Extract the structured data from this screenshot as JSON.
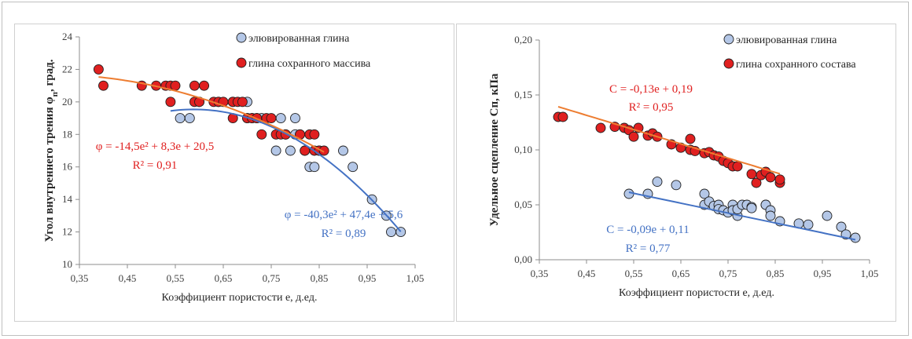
{
  "chart_data": [
    {
      "type": "scatter",
      "xlabel": "Коэффициент пористости е, д.ед.",
      "ylabel": "Угол внутреннего трения φ",
      "ylabel_sub": "п",
      "ylabel_tail": ", град.",
      "xlim": [
        0.35,
        1.05
      ],
      "ylim": [
        10,
        24
      ],
      "xticks": [
        0.35,
        0.45,
        0.55,
        0.65,
        0.75,
        0.85,
        0.95,
        1.05
      ],
      "yticks": [
        10,
        12,
        14,
        16,
        18,
        20,
        22,
        24
      ],
      "x_decimals": 2,
      "y_decimals": 0,
      "legend": [
        {
          "label": "элювированная глина",
          "color": "#b4c7e7"
        },
        {
          "label": "глина сохранного массива",
          "color": "#e02020"
        }
      ],
      "series": [
        {
          "name": "элювированная глина",
          "fill": "#b4c7e7",
          "trend_color": "#4472c4",
          "trend": {
            "kind": "poly2",
            "a": -40.3,
            "b": 47.4,
            "c": 5.6,
            "x0": 0.54,
            "x1": 1.02
          },
          "points": [
            [
              0.56,
              19
            ],
            [
              0.58,
              19
            ],
            [
              0.6,
              20
            ],
            [
              0.64,
              20
            ],
            [
              0.67,
              20
            ],
            [
              0.7,
              20
            ],
            [
              0.7,
              19
            ],
            [
              0.71,
              19
            ],
            [
              0.72,
              19
            ],
            [
              0.73,
              19
            ],
            [
              0.76,
              17
            ],
            [
              0.77,
              19
            ],
            [
              0.78,
              18
            ],
            [
              0.79,
              17
            ],
            [
              0.8,
              19
            ],
            [
              0.8,
              18
            ],
            [
              0.81,
              18
            ],
            [
              0.82,
              17
            ],
            [
              0.83,
              16
            ],
            [
              0.84,
              16
            ],
            [
              0.85,
              17
            ],
            [
              0.9,
              17
            ],
            [
              0.92,
              16
            ],
            [
              0.96,
              14
            ],
            [
              0.99,
              13
            ],
            [
              1.0,
              12
            ],
            [
              1.02,
              12
            ]
          ]
        },
        {
          "name": "глина сохранного массива",
          "fill": "#e02020",
          "trend_color": "#ed7d31",
          "trend": {
            "kind": "poly2",
            "a": -14.5,
            "b": 8.3,
            "c": 20.5,
            "x0": 0.39,
            "x1": 0.86
          },
          "points": [
            [
              0.39,
              22
            ],
            [
              0.4,
              21
            ],
            [
              0.48,
              21
            ],
            [
              0.51,
              21
            ],
            [
              0.53,
              21
            ],
            [
              0.54,
              21
            ],
            [
              0.55,
              21
            ],
            [
              0.54,
              20
            ],
            [
              0.59,
              20
            ],
            [
              0.59,
              21
            ],
            [
              0.61,
              21
            ],
            [
              0.6,
              20
            ],
            [
              0.63,
              20
            ],
            [
              0.64,
              20
            ],
            [
              0.65,
              20
            ],
            [
              0.67,
              20
            ],
            [
              0.68,
              20
            ],
            [
              0.67,
              19
            ],
            [
              0.69,
              20
            ],
            [
              0.7,
              19
            ],
            [
              0.71,
              19
            ],
            [
              0.72,
              19
            ],
            [
              0.73,
              18
            ],
            [
              0.74,
              19
            ],
            [
              0.75,
              19
            ],
            [
              0.76,
              18
            ],
            [
              0.77,
              18
            ],
            [
              0.78,
              18
            ],
            [
              0.81,
              18
            ],
            [
              0.82,
              17
            ],
            [
              0.83,
              18
            ],
            [
              0.84,
              17
            ],
            [
              0.84,
              18
            ],
            [
              0.85,
              17
            ],
            [
              0.86,
              17
            ]
          ]
        }
      ],
      "annotations": [
        {
          "text": "φ = -14,5e² + 8,3e + 20,5",
          "color": "#e02020"
        },
        {
          "text": "R² = 0,91",
          "color": "#e02020"
        },
        {
          "text": "φ = -40,3e² + 47,4e + 5,6",
          "color": "#4472c4"
        },
        {
          "text": "R² = 0,89",
          "color": "#4472c4"
        }
      ]
    },
    {
      "type": "scatter",
      "xlabel": "Коэффициент пористости е, д.ед.",
      "ylabel": "Удельное сцепление Сп, кПа",
      "ylabel_sub": "",
      "ylabel_tail": "",
      "xlim": [
        0.35,
        1.05
      ],
      "ylim": [
        0,
        0.2
      ],
      "xticks": [
        0.35,
        0.45,
        0.55,
        0.65,
        0.75,
        0.85,
        0.95,
        1.05
      ],
      "yticks": [
        0,
        0.05,
        0.1,
        0.15,
        0.2
      ],
      "x_decimals": 2,
      "y_decimals": 2,
      "legend": [
        {
          "label": "элювированная глина",
          "color": "#b4c7e7"
        },
        {
          "label": "глина сохранного состава",
          "color": "#e02020"
        }
      ],
      "series": [
        {
          "name": "элювированная глина",
          "fill": "#b4c7e7",
          "trend_color": "#4472c4",
          "trend": {
            "kind": "line",
            "a": -0.09,
            "b": 0.11,
            "x0": 0.54,
            "x1": 1.02
          },
          "points": [
            [
              0.54,
              0.06
            ],
            [
              0.58,
              0.06
            ],
            [
              0.6,
              0.071
            ],
            [
              0.64,
              0.068
            ],
            [
              0.7,
              0.05
            ],
            [
              0.7,
              0.06
            ],
            [
              0.71,
              0.053
            ],
            [
              0.72,
              0.049
            ],
            [
              0.73,
              0.05
            ],
            [
              0.73,
              0.046
            ],
            [
              0.74,
              0.045
            ],
            [
              0.75,
              0.043
            ],
            [
              0.76,
              0.05
            ],
            [
              0.76,
              0.045
            ],
            [
              0.77,
              0.04
            ],
            [
              0.77,
              0.046
            ],
            [
              0.78,
              0.05
            ],
            [
              0.79,
              0.05
            ],
            [
              0.8,
              0.048
            ],
            [
              0.8,
              0.047
            ],
            [
              0.83,
              0.05
            ],
            [
              0.83,
              0.05
            ],
            [
              0.84,
              0.045
            ],
            [
              0.84,
              0.04
            ],
            [
              0.86,
              0.035
            ],
            [
              0.9,
              0.033
            ],
            [
              0.92,
              0.032
            ],
            [
              0.96,
              0.04
            ],
            [
              0.99,
              0.03
            ],
            [
              1.0,
              0.023
            ],
            [
              1.02,
              0.02
            ]
          ]
        },
        {
          "name": "глина сохранного состава",
          "fill": "#e02020",
          "trend_color": "#ed7d31",
          "trend": {
            "kind": "line",
            "a": -0.13,
            "b": 0.19,
            "x0": 0.39,
            "x1": 0.86
          },
          "points": [
            [
              0.39,
              0.13
            ],
            [
              0.4,
              0.13
            ],
            [
              0.48,
              0.12
            ],
            [
              0.51,
              0.121
            ],
            [
              0.53,
              0.12
            ],
            [
              0.54,
              0.118
            ],
            [
              0.55,
              0.112
            ],
            [
              0.56,
              0.12
            ],
            [
              0.58,
              0.113
            ],
            [
              0.59,
              0.115
            ],
            [
              0.6,
              0.112
            ],
            [
              0.63,
              0.105
            ],
            [
              0.65,
              0.102
            ],
            [
              0.67,
              0.11
            ],
            [
              0.67,
              0.1
            ],
            [
              0.68,
              0.099
            ],
            [
              0.7,
              0.097
            ],
            [
              0.71,
              0.098
            ],
            [
              0.72,
              0.095
            ],
            [
              0.73,
              0.094
            ],
            [
              0.74,
              0.09
            ],
            [
              0.75,
              0.088
            ],
            [
              0.76,
              0.085
            ],
            [
              0.77,
              0.085
            ],
            [
              0.8,
              0.078
            ],
            [
              0.81,
              0.07
            ],
            [
              0.82,
              0.077
            ],
            [
              0.83,
              0.08
            ],
            [
              0.84,
              0.075
            ],
            [
              0.86,
              0.07
            ],
            [
              0.86,
              0.073
            ]
          ]
        }
      ],
      "annotations": [
        {
          "text": "С = -0,13е + 0,19",
          "color": "#e02020"
        },
        {
          "text": "R² = 0,95",
          "color": "#e02020"
        },
        {
          "text": "С = -0,09е + 0,11",
          "color": "#4472c4"
        },
        {
          "text": "R² = 0,77",
          "color": "#4472c4"
        }
      ]
    }
  ]
}
